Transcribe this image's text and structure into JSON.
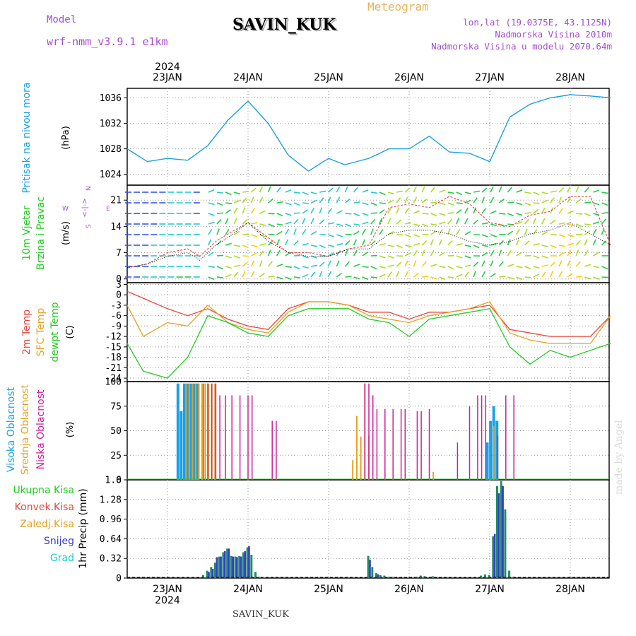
{
  "header": {
    "model_label": "Model",
    "model_name": "wrf-nmm_v3.9.1 e1km",
    "station": "SAVIN_KUK",
    "product": "Meteogram",
    "lonlat": "lon,lat (19.0375E, 43.1125N)",
    "elevation": "Nadmorska Visina 2010m",
    "model_elevation": "Nadmorska Visina u modelu 2070.64m",
    "footer_station": "SAVIN_KUK",
    "credit": "made by Angel"
  },
  "colors": {
    "pressure": "#1ba1e2",
    "temp2m": "#e8453c",
    "sfc": "#e6a020",
    "dewpt": "#22cc22",
    "cloud_high": "#1aa0e8",
    "cloud_mid": "#e6a020",
    "cloud_low": "#cc1f9a",
    "precip_total": "#1f8f60",
    "precip_snow": "#3a3ad0",
    "model": "#a64dd1",
    "product": "#e8b35a",
    "info": "#a64dd1"
  },
  "time_axis": {
    "year": "2024",
    "days": [
      "23JAN",
      "24JAN",
      "25JAN",
      "26JAN",
      "27JAN",
      "28JAN"
    ]
  },
  "chart_data": [
    {
      "id": "pressure",
      "type": "line",
      "ylabel": [
        "Pritisak na nivou mora",
        "(hPa)"
      ],
      "yticks": [
        1024,
        1028,
        1032,
        1036
      ],
      "ylim": [
        1022.3,
        1037.5
      ],
      "x_unit": "day offset from 00 UTC 22JAN",
      "x": [
        0.5,
        0.75,
        1.0,
        1.25,
        1.5,
        1.75,
        2.0,
        2.25,
        2.5,
        2.75,
        3.0,
        3.2,
        3.5,
        3.75,
        4.0,
        4.25,
        4.5,
        4.75,
        5.0,
        5.25,
        5.5,
        5.75,
        6.0,
        6.25,
        6.5
      ],
      "series": [
        {
          "values": [
            1028.0,
            1026.0,
            1026.5,
            1026.2,
            1028.5,
            1032.5,
            1035.5,
            1032.0,
            1027.0,
            1024.5,
            1026.5,
            1025.5,
            1026.5,
            1028.0,
            1028.0,
            1030.0,
            1027.5,
            1027.3,
            1026.0,
            1033.0,
            1035.0,
            1036.0,
            1036.5,
            1036.3,
            1036.0
          ]
        }
      ]
    },
    {
      "id": "wind",
      "type": "line",
      "ylabel": [
        "10m Vjetar",
        "Brzina i Pravac",
        "(m/s)"
      ],
      "compass": {
        "n": "N",
        "s": "S",
        "e": "E",
        "w": "W",
        "arrows": "<-|->"
      },
      "yticks": [
        0,
        7,
        14,
        21
      ],
      "ylim": [
        -1,
        25
      ],
      "x_unit": "day offset from 00 UTC 22JAN",
      "x": [
        0.5,
        0.75,
        1.0,
        1.25,
        1.4,
        1.6,
        1.75,
        2.0,
        2.25,
        2.5,
        2.75,
        3.0,
        3.25,
        3.5,
        3.75,
        4.0,
        4.25,
        4.5,
        4.75,
        5.0,
        5.25,
        5.5,
        5.75,
        6.0,
        6.25,
        6.5
      ],
      "series": [
        {
          "name": "gust",
          "values": [
            3,
            4,
            7,
            8,
            6,
            10,
            12,
            15,
            11,
            7,
            7,
            6,
            8,
            9,
            19,
            20,
            19,
            22,
            20,
            15,
            14,
            17,
            18,
            22,
            22,
            9
          ]
        },
        {
          "name": "mean",
          "values": [
            3,
            4,
            6,
            7,
            5,
            9,
            11,
            15,
            10,
            7,
            6,
            6,
            8,
            8,
            12,
            13,
            13,
            12,
            10,
            9,
            10,
            12,
            13,
            15,
            12,
            9
          ]
        }
      ]
    },
    {
      "id": "temperature",
      "type": "line",
      "ylabel": [
        "2m Temp",
        "SFC Temp",
        "dewpt Temp",
        "(C)"
      ],
      "yticks": [
        -24,
        -21,
        -18,
        -15,
        -12,
        -9,
        -6,
        -3,
        0,
        3
      ],
      "ylim": [
        -25,
        3.5
      ],
      "x_unit": "day offset from 00 UTC 22JAN",
      "x": [
        0.5,
        0.7,
        1.0,
        1.25,
        1.5,
        1.75,
        2.0,
        2.25,
        2.5,
        2.75,
        3.0,
        3.25,
        3.5,
        3.75,
        4.0,
        4.25,
        4.5,
        4.75,
        5.0,
        5.25,
        5.5,
        5.75,
        6.0,
        6.25,
        6.5
      ],
      "series": [
        {
          "name": "2m Temp",
          "values": [
            1,
            -1,
            -4,
            -6,
            -4,
            -7,
            -9,
            -10,
            -4,
            -2,
            -2,
            -3,
            -5,
            -5,
            -7,
            -5,
            -5,
            -4,
            -3,
            -10,
            -11,
            -12,
            -12,
            -12,
            -6
          ]
        },
        {
          "name": "SFC Temp",
          "values": [
            -3,
            -12,
            -8,
            -9,
            -3,
            -8,
            -10,
            -11,
            -5,
            -2,
            -2,
            -3,
            -6,
            -7,
            -8,
            -6,
            -5,
            -4,
            -2,
            -11,
            -13,
            -14,
            -14,
            -14,
            -6
          ]
        },
        {
          "name": "dewpt Temp",
          "values": [
            -14,
            -22,
            -24,
            -18,
            -6,
            -8,
            -11,
            -12,
            -6,
            -4,
            -4,
            -4,
            -7,
            -8,
            -12,
            -7,
            -6,
            -5,
            -4,
            -15,
            -20,
            -16,
            -18,
            -16,
            -14
          ]
        }
      ]
    },
    {
      "id": "clouds",
      "type": "bar",
      "ylabel": [
        "Visoka Oblacnost",
        "Srednja Oblacnost",
        "Niska Oblacnost",
        "(%)"
      ],
      "yticks": [
        0,
        25,
        50,
        75,
        100
      ],
      "ylim": [
        0,
        100
      ],
      "x_unit": "day offset from 00 UTC 22JAN",
      "series": [
        {
          "name": "Visoka Oblacnost",
          "x": [
            1.13,
            1.17,
            1.21,
            1.25,
            1.29,
            1.33,
            1.37,
            4.97,
            5.01,
            5.05,
            5.09
          ],
          "values": [
            98,
            70,
            98,
            98,
            98,
            98,
            98,
            38,
            60,
            75,
            60
          ]
        },
        {
          "name": "Srednja Oblacnost",
          "x": [
            1.23,
            1.27,
            1.31,
            1.35,
            1.39,
            1.43,
            1.47,
            1.51,
            1.55,
            1.59,
            3.3,
            3.35,
            3.4,
            3.45,
            3.5,
            4.3,
            5.05
          ],
          "values": [
            98,
            98,
            98,
            98,
            98,
            98,
            98,
            98,
            98,
            98,
            20,
            65,
            44,
            98,
            45,
            8,
            55
          ]
        },
        {
          "name": "Niska Oblacnost",
          "x": [
            1.45,
            1.5,
            1.55,
            1.6,
            1.65,
            1.72,
            1.8,
            1.9,
            2.0,
            2.05,
            2.3,
            2.35,
            3.45,
            3.5,
            3.55,
            3.6,
            3.7,
            3.8,
            3.9,
            3.95,
            4.1,
            4.15,
            4.25,
            4.6,
            4.75,
            4.85,
            4.9,
            4.95,
            5.1,
            5.2,
            5.3
          ],
          "values": [
            98,
            98,
            98,
            98,
            86,
            86,
            86,
            86,
            86,
            86,
            60,
            60,
            98,
            98,
            86,
            72,
            72,
            72,
            72,
            72,
            70,
            70,
            72,
            38,
            75,
            86,
            86,
            86,
            45,
            86,
            86
          ]
        }
      ]
    },
    {
      "id": "precip",
      "type": "bar",
      "ylabel": [
        "1hr Precip (mm)"
      ],
      "legend": [
        "Ukupna Kisa",
        "Konvek.Kisa",
        "Zaledj.Kisa",
        "Snijeg",
        "Grad"
      ],
      "legend_colors": [
        "#22cc22",
        "#e8453c",
        "#e6a020",
        "#3a3ad0",
        "#22cccc"
      ],
      "yticks": [
        0,
        0.32,
        0.64,
        0.96,
        1.28,
        1.6
      ],
      "ylim": [
        0,
        1.6
      ],
      "x_unit": "day offset from 00 UTC 22JAN",
      "x": [
        1.45,
        1.5,
        1.55,
        1.6,
        1.65,
        1.7,
        1.75,
        1.8,
        1.85,
        1.9,
        1.95,
        2.0,
        2.05,
        2.1,
        2.15,
        2.2,
        3.5,
        3.55,
        3.6,
        3.65,
        3.7,
        3.75,
        3.8,
        4.1,
        4.15,
        4.2,
        4.3,
        4.9,
        4.95,
        5.0,
        5.05,
        5.1,
        5.15,
        5.2,
        5.25,
        5.3
      ],
      "series": [
        {
          "name": "Ukupna Kisa",
          "values": [
            0.05,
            0.12,
            0.18,
            0.25,
            0.35,
            0.42,
            0.48,
            0.36,
            0.35,
            0.36,
            0.42,
            0.5,
            0.38,
            0.1,
            0.02,
            0.01,
            0.36,
            0.18,
            0.08,
            0.05,
            0.04,
            0.02,
            0.02,
            0.02,
            0.04,
            0.03,
            0.03,
            0.04,
            0.06,
            0.05,
            0.68,
            1.5,
            1.58,
            1.12,
            0.12,
            0.02
          ]
        },
        {
          "name": "Snijeg",
          "values": [
            0.0,
            0.1,
            0.15,
            0.34,
            0.35,
            0.44,
            0.48,
            0.35,
            0.34,
            0.35,
            0.44,
            0.52,
            0.0,
            0.0,
            0.0,
            0.0,
            0.3,
            0.0,
            0.06,
            0.0,
            0.0,
            0.0,
            0.0,
            0.0,
            0.0,
            0.0,
            0.0,
            0.0,
            0.0,
            0.0,
            0.72,
            1.38,
            1.5,
            0.0,
            0.0,
            0.0
          ]
        }
      ]
    }
  ]
}
